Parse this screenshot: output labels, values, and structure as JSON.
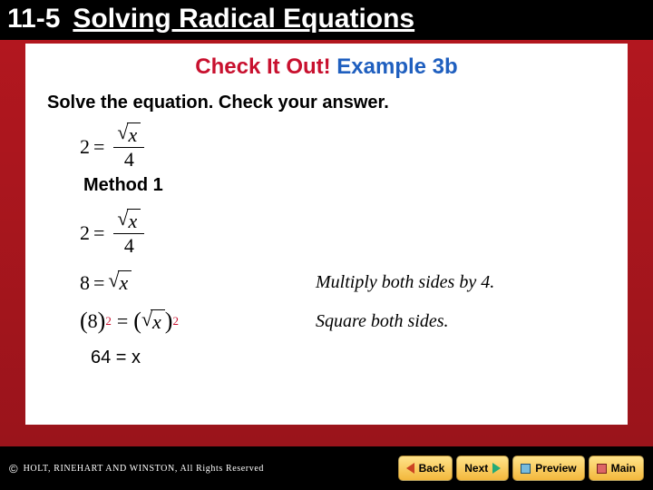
{
  "header": {
    "section_number": "11-5",
    "section_title": "Solving Radical Equations"
  },
  "card": {
    "cio_prefix": "Check It Out!",
    "cio_example": "Example 3b",
    "instruction": "Solve the equation. Check your answer.",
    "given_lhs": "2",
    "given_eqsym": "=",
    "given_radicand": "x",
    "given_denominator": "4",
    "method_label": "Method 1",
    "steps": [
      {
        "lhs": "2",
        "eq": "=",
        "rhs_type": "frac_sqrt",
        "radicand": "x",
        "den": "4",
        "explain": ""
      },
      {
        "lhs": "8",
        "eq": "=",
        "rhs_type": "sqrt",
        "radicand": "x",
        "explain": "Multiply both sides by 4."
      },
      {
        "lhs": "8",
        "eq": "=",
        "rhs_type": "sqrt_sq",
        "radicand": "x",
        "explain": "Square both sides."
      }
    ],
    "final_result": "64 = x"
  },
  "footer": {
    "copyright_symbol": "©",
    "copyright_text": "HOLT, RINEHART AND WINSTON, All Rights Reserved",
    "buttons": {
      "back": "Back",
      "next": "Next",
      "preview": "Preview",
      "main": "Main"
    }
  },
  "colors": {
    "brand_red": "#c8102e",
    "brand_blue": "#1f5fbf",
    "band_top": "#b2171f",
    "band_bottom": "#9a141b",
    "btn_top": "#ffe38a",
    "btn_bottom": "#f3b83c"
  }
}
